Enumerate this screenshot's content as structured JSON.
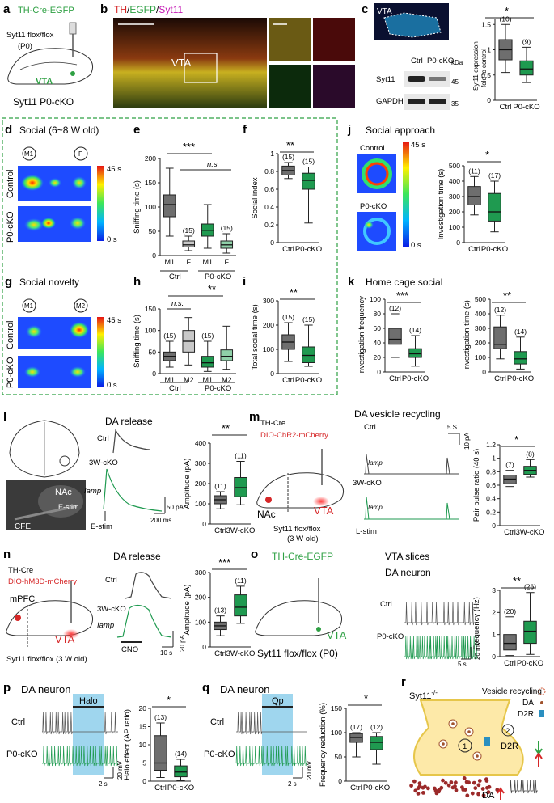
{
  "panels": {
    "a": {
      "letter": "a",
      "title": "TH-Cre-EGFP",
      "line1": "Syt11 flox/flox",
      "line2": "(P0)",
      "region": "VTA",
      "caption": "Syt11 P0-cKO"
    },
    "b": {
      "letter": "b",
      "title_parts": [
        "TH",
        "/",
        "EGFP",
        "/",
        "Syt11"
      ],
      "region": "VTA"
    },
    "c": {
      "letter": "c",
      "region": "VTA",
      "blot_lanes": [
        "Ctrl",
        "P0-cKO"
      ],
      "kda_label": "kDa",
      "bands": [
        "Syt11",
        "GAPDH"
      ],
      "markers": [
        "45",
        "35"
      ],
      "ylabel_1": "Syt11 expression",
      "ylabel_2": "fold to control",
      "sig": "*"
    },
    "d": {
      "letter": "d",
      "title": "Social (6~8 W old)",
      "chamber_left": "M1",
      "chamber_right": "F",
      "rows": [
        "Control",
        "P0-cKO"
      ],
      "scale_max": "45 s",
      "scale_min": "0 s"
    },
    "e": {
      "letter": "e",
      "sig_main": "***",
      "sig_ns": "n.s.",
      "group_ctrl": "Ctrl",
      "group_cko": "P0-cKO"
    },
    "f": {
      "letter": "f",
      "sig": "**"
    },
    "g": {
      "letter": "g",
      "title": "Social novelty",
      "chamber_left": "M1",
      "chamber_right": "M2",
      "rows": [
        "Control",
        "P0-cKO"
      ],
      "scale_max": "45 s",
      "scale_min": "0 s"
    },
    "h": {
      "letter": "h",
      "sig_main": "**",
      "sig_ns": "n.s.",
      "group_ctrl": "Ctrl",
      "group_cko": "P0-cKO"
    },
    "i": {
      "letter": "i",
      "sig": "**"
    },
    "j": {
      "letter": "j",
      "title": "Social approach",
      "row1": "Control",
      "row2": "P0-cKO",
      "scale_max": "45 s",
      "scale_min": "0 s",
      "sig": "*"
    },
    "k": {
      "letter": "k",
      "title": "Home cage social",
      "sig_left": "***",
      "sig_right": "**"
    },
    "l": {
      "letter": "l",
      "title": "DA release",
      "nac": "NAc",
      "estim": "E-stim",
      "cfe": "CFE",
      "ctrl": "Ctrl",
      "cko": "3W-cKO",
      "iamp": "Iamp",
      "estim_bottom": "E-stim",
      "scale_y": "50 pA",
      "scale_x": "200 ms",
      "sig": "**"
    },
    "m": {
      "letter": "m",
      "title": "DA vesicle recycling",
      "th": "TH-Cre",
      "virus": "DIO-ChR2-mCherry",
      "mouse": "Syt11 flox/flox",
      "mouse2": "(3 W old)",
      "nac": "NAc",
      "vta": "VTA",
      "ctrl": "Ctrl",
      "cko": "3W-cKO",
      "iamp": "Iamp",
      "lstim": "L-stim",
      "scale_x": "5 S",
      "scale_y": "10 pA",
      "sig": "*"
    },
    "n": {
      "letter": "n",
      "title": "DA release",
      "th": "TH-Cre",
      "virus": "DIO-hM3D-mCherry",
      "mpfc": "mPFC",
      "vta": "VTA",
      "mouse": "Syt11 flox/flox (3 W old)",
      "ctrl": "Ctrl",
      "cko": "3W-cKO",
      "iamp": "Iamp",
      "cno": "CNO",
      "scale_y": "20 pA",
      "scale_x": "10 s",
      "sig": "***"
    },
    "o": {
      "letter": "o",
      "title": "TH-Cre-EGFP",
      "subtitle": "VTA slices",
      "neuron": "DA neuron",
      "vta": "VTA",
      "mouse": "Syt11 flox/flox (P0)",
      "ctrl": "Ctrl",
      "cko": "P0-cKO",
      "scale_y": "20 mV",
      "scale_x": "5 s",
      "sig": "**"
    },
    "p": {
      "letter": "p",
      "title": "DA neuron",
      "halo": "Halo",
      "ctrl": "Ctrl",
      "cko": "P0-cKO",
      "scale_y": "20 mV",
      "scale_x": "2 s",
      "sig": "*"
    },
    "q": {
      "letter": "q",
      "title": "DA neuron",
      "qp": "Qp",
      "ctrl": "Ctrl",
      "cko": "P0-cKO",
      "scale_y": "20 mV",
      "scale_x": "2 s",
      "sig": "*"
    },
    "r": {
      "letter": "r",
      "title": "Syt11",
      "superscript": "-/-",
      "legend_recycling": "Vesicle recycling",
      "legend_da": "DA",
      "legend_d2r": "D2R",
      "d2r": "D2R",
      "da": "DA",
      "num1": "1",
      "num2": "2"
    }
  },
  "boxplots": [
    {
      "id": "c",
      "ylabel": "Syt11 expression fold to control",
      "ylim": [
        0,
        1.6
      ],
      "yticks": [
        0,
        0.5,
        1.0,
        1.5
      ],
      "groups": [
        {
          "label": "Ctrl",
          "n": "(10)",
          "whisk": [
            0.55,
            1.5
          ],
          "box": [
            0.8,
            1.2
          ],
          "median": 1.0,
          "color": "#6e6e6e"
        },
        {
          "label": "P0-cKO",
          "n": "(9)",
          "whisk": [
            0.35,
            1.05
          ],
          "box": [
            0.5,
            0.78
          ],
          "median": 0.62,
          "color": "#1f9a50"
        }
      ]
    },
    {
      "id": "e",
      "ylabel": "Sniffing time (s)",
      "ylim": [
        0,
        200
      ],
      "yticks": [
        0,
        50,
        100,
        150,
        200
      ],
      "groups": [
        {
          "label": "M1",
          "n": "",
          "whisk": [
            40,
            180
          ],
          "box": [
            80,
            125
          ],
          "median": 105,
          "color": "#6e6e6e"
        },
        {
          "label": "F",
          "n": "(15)",
          "whisk": [
            10,
            40
          ],
          "box": [
            18,
            30
          ],
          "median": 22,
          "color": "#c8c8c8"
        },
        {
          "label": "M1",
          "n": "",
          "whisk": [
            15,
            105
          ],
          "box": [
            40,
            65
          ],
          "median": 52,
          "color": "#1f9a50"
        },
        {
          "label": "F",
          "n": "(15)",
          "whisk": [
            5,
            45
          ],
          "box": [
            15,
            30
          ],
          "median": 22,
          "color": "#8fd0a8"
        }
      ]
    },
    {
      "id": "f",
      "ylabel": "Social index",
      "ylim": [
        0,
        1.0
      ],
      "yticks": [
        0,
        0.2,
        0.4,
        0.6,
        0.8,
        1.0
      ],
      "groups": [
        {
          "label": "Ctrl",
          "n": "(15)",
          "whisk": [
            0.72,
            0.9
          ],
          "box": [
            0.76,
            0.86
          ],
          "median": 0.81,
          "color": "#6e6e6e"
        },
        {
          "label": "P0-cKO",
          "n": "(15)",
          "whisk": [
            0.22,
            0.85
          ],
          "box": [
            0.6,
            0.78
          ],
          "median": 0.7,
          "color": "#1f9a50"
        }
      ]
    },
    {
      "id": "j",
      "ylabel": "Investigation time (s)",
      "ylim": [
        0,
        500
      ],
      "yticks": [
        0,
        100,
        200,
        300,
        400,
        500
      ],
      "groups": [
        {
          "label": "Ctrl",
          "n": "(11)",
          "whisk": [
            180,
            430
          ],
          "box": [
            245,
            365
          ],
          "median": 300,
          "color": "#6e6e6e"
        },
        {
          "label": "P0-cKO",
          "n": "(17)",
          "whisk": [
            70,
            400
          ],
          "box": [
            140,
            320
          ],
          "median": 200,
          "color": "#1f9a50"
        }
      ]
    },
    {
      "id": "h",
      "ylabel": "Sniffing time (s)",
      "ylim": [
        0,
        150
      ],
      "yticks": [
        0,
        50,
        100,
        150
      ],
      "groups": [
        {
          "label": "M1",
          "n": "(15)",
          "whisk": [
            15,
            75
          ],
          "box": [
            30,
            50
          ],
          "median": 40,
          "color": "#6e6e6e"
        },
        {
          "label": "M2",
          "n": "",
          "whisk": [
            20,
            130
          ],
          "box": [
            50,
            100
          ],
          "median": 75,
          "color": "#c8c8c8"
        },
        {
          "label": "M1",
          "n": "(15)",
          "whisk": [
            5,
            75
          ],
          "box": [
            15,
            40
          ],
          "median": 25,
          "color": "#1f9a50"
        },
        {
          "label": "M2",
          "n": "",
          "whisk": [
            10,
            110
          ],
          "box": [
            30,
            55
          ],
          "median": 40,
          "color": "#8fd0a8"
        }
      ]
    },
    {
      "id": "i",
      "ylabel": "Total social time (s)",
      "ylim": [
        0,
        300
      ],
      "yticks": [
        0,
        100,
        200,
        300
      ],
      "groups": [
        {
          "label": "Ctrl",
          "n": "(15)",
          "whisk": [
            50,
            210
          ],
          "box": [
            100,
            160
          ],
          "median": 130,
          "color": "#6e6e6e"
        },
        {
          "label": "P0-cKO",
          "n": "(15)",
          "whisk": [
            30,
            200
          ],
          "box": [
            45,
            110
          ],
          "median": 75,
          "color": "#1f9a50"
        }
      ]
    },
    {
      "id": "k1",
      "ylabel": "Investigation frequency",
      "ylim": [
        0,
        100
      ],
      "yticks": [
        0,
        20,
        40,
        60,
        80,
        100
      ],
      "groups": [
        {
          "label": "Ctrl",
          "n": "(12)",
          "whisk": [
            20,
            80
          ],
          "box": [
            38,
            60
          ],
          "median": 45,
          "color": "#6e6e6e"
        },
        {
          "label": "P0-cKO",
          "n": "(14)",
          "whisk": [
            8,
            50
          ],
          "box": [
            20,
            32
          ],
          "median": 25,
          "color": "#1f9a50"
        }
      ]
    },
    {
      "id": "k2",
      "ylabel": "Investigation time (s)",
      "ylim": [
        0,
        500
      ],
      "yticks": [
        0,
        100,
        200,
        300,
        400,
        500
      ],
      "groups": [
        {
          "label": "Ctrl",
          "n": "(12)",
          "whisk": [
            90,
            390
          ],
          "box": [
            160,
            310
          ],
          "median": 190,
          "color": "#6e6e6e"
        },
        {
          "label": "P0-cKO",
          "n": "(14)",
          "whisk": [
            20,
            240
          ],
          "box": [
            55,
            140
          ],
          "median": 90,
          "color": "#1f9a50"
        }
      ]
    },
    {
      "id": "l",
      "ylabel": "Amplitude (pA)",
      "ylim": [
        0,
        400
      ],
      "yticks": [
        0,
        100,
        200,
        300,
        400
      ],
      "groups": [
        {
          "label": "Ctrl",
          "n": "(11)",
          "whisk": [
            75,
            160
          ],
          "box": [
            100,
            140
          ],
          "median": 120,
          "color": "#6e6e6e"
        },
        {
          "label": "3W-cKO",
          "n": "(11)",
          "whisk": [
            95,
            310
          ],
          "box": [
            135,
            230
          ],
          "median": 180,
          "color": "#1f9a50"
        }
      ]
    },
    {
      "id": "m",
      "ylabel": "Pair pulse ratio (40 s)",
      "ylim": [
        0,
        1.2
      ],
      "yticks": [
        0,
        0.2,
        0.4,
        0.6,
        0.8,
        1.0,
        1.2
      ],
      "groups": [
        {
          "label": "Ctrl",
          "n": "(7)",
          "whisk": [
            0.58,
            0.82
          ],
          "box": [
            0.62,
            0.75
          ],
          "median": 0.69,
          "color": "#6e6e6e"
        },
        {
          "label": "3W-cKO",
          "n": "(8)",
          "whisk": [
            0.72,
            0.98
          ],
          "box": [
            0.76,
            0.88
          ],
          "median": 0.82,
          "color": "#1f9a50"
        }
      ]
    },
    {
      "id": "n",
      "ylabel": "Amplitude (pA)",
      "ylim": [
        0,
        300
      ],
      "yticks": [
        0,
        100,
        200,
        300
      ],
      "groups": [
        {
          "label": "Ctrl",
          "n": "(13)",
          "whisk": [
            45,
            125
          ],
          "box": [
            70,
            100
          ],
          "median": 85,
          "color": "#6e6e6e"
        },
        {
          "label": "3W-cKO",
          "n": "(11)",
          "whisk": [
            95,
            245
          ],
          "box": [
            125,
            210
          ],
          "median": 160,
          "color": "#1f9a50"
        }
      ]
    },
    {
      "id": "o",
      "ylabel": "Frequency (Hz)",
      "ylim": [
        0,
        3
      ],
      "yticks": [
        0,
        1,
        2,
        3
      ],
      "groups": [
        {
          "label": "Ctrl",
          "n": "(20)",
          "whisk": [
            0.05,
            1.8
          ],
          "box": [
            0.3,
            1.0
          ],
          "median": 0.6,
          "color": "#6e6e6e"
        },
        {
          "label": "P0-cKO",
          "n": "(26)",
          "whisk": [
            0.1,
            2.9
          ],
          "box": [
            0.6,
            1.6
          ],
          "median": 1.15,
          "color": "#1f9a50"
        }
      ]
    },
    {
      "id": "p",
      "ylabel": "Halo effect (AP ratio)",
      "ylim": [
        0,
        20
      ],
      "yticks": [
        0,
        5,
        10,
        15,
        20
      ],
      "groups": [
        {
          "label": "Ctrl",
          "n": "(13)",
          "whisk": [
            1,
            16
          ],
          "box": [
            3,
            12.5
          ],
          "median": 5,
          "color": "#6e6e6e"
        },
        {
          "label": "P0-cKO",
          "n": "(14)",
          "whisk": [
            0.2,
            6
          ],
          "box": [
            1.2,
            4.2
          ],
          "median": 2.5,
          "color": "#1f9a50"
        }
      ]
    },
    {
      "id": "q",
      "ylabel": "Frequency reduction (%)",
      "ylim": [
        0,
        150
      ],
      "yticks": [
        0,
        50,
        100,
        150
      ],
      "groups": [
        {
          "label": "Ctrl",
          "n": "(17)",
          "whisk": [
            50,
            100
          ],
          "box": [
            80,
            98
          ],
          "median": 90,
          "color": "#6e6e6e"
        },
        {
          "label": "P0-cKO",
          "n": "(12)",
          "whisk": [
            35,
            100
          ],
          "box": [
            65,
            92
          ],
          "median": 80,
          "color": "#1f9a50"
        }
      ]
    }
  ],
  "chart_data": [
    {
      "type": "box",
      "panel": "c",
      "categories": [
        "Ctrl",
        "P0-cKO"
      ],
      "ylabel": "Syt11 expression fold to control",
      "ylim": [
        0,
        1.6
      ]
    },
    {
      "type": "box",
      "panel": "e",
      "categories": [
        "Ctrl M1",
        "Ctrl F",
        "P0-cKO M1",
        "P0-cKO F"
      ],
      "ylabel": "Sniffing time (s)",
      "ylim": [
        0,
        200
      ]
    },
    {
      "type": "box",
      "panel": "f",
      "categories": [
        "Ctrl",
        "P0-cKO"
      ],
      "ylabel": "Social index",
      "ylim": [
        0,
        1.0
      ]
    },
    {
      "type": "box",
      "panel": "h",
      "categories": [
        "Ctrl M1",
        "Ctrl M2",
        "P0-cKO M1",
        "P0-cKO M2"
      ],
      "ylabel": "Sniffing time (s)",
      "ylim": [
        0,
        150
      ]
    },
    {
      "type": "box",
      "panel": "i",
      "categories": [
        "Ctrl",
        "P0-cKO"
      ],
      "ylabel": "Total social time (s)",
      "ylim": [
        0,
        300
      ]
    },
    {
      "type": "box",
      "panel": "j",
      "categories": [
        "Ctrl",
        "P0-cKO"
      ],
      "ylabel": "Investigation time (s)",
      "ylim": [
        0,
        500
      ]
    },
    {
      "type": "box",
      "panel": "k",
      "categories": [
        "Ctrl",
        "P0-cKO"
      ],
      "ylabel": "Investigation frequency / Investigation time (s)"
    },
    {
      "type": "box",
      "panel": "l",
      "categories": [
        "Ctrl",
        "3W-cKO"
      ],
      "ylabel": "Amplitude (pA)",
      "ylim": [
        0,
        400
      ]
    },
    {
      "type": "box",
      "panel": "m",
      "categories": [
        "Ctrl",
        "3W-cKO"
      ],
      "ylabel": "Pair pulse ratio (40 s)",
      "ylim": [
        0,
        1.2
      ]
    },
    {
      "type": "box",
      "panel": "n",
      "categories": [
        "Ctrl",
        "3W-cKO"
      ],
      "ylabel": "Amplitude (pA)",
      "ylim": [
        0,
        300
      ]
    },
    {
      "type": "box",
      "panel": "o",
      "categories": [
        "Ctrl",
        "P0-cKO"
      ],
      "ylabel": "Frequency (Hz)",
      "ylim": [
        0,
        3
      ]
    },
    {
      "type": "box",
      "panel": "p",
      "categories": [
        "Ctrl",
        "P0-cKO"
      ],
      "ylabel": "Halo effect (AP ratio)",
      "ylim": [
        0,
        20
      ]
    },
    {
      "type": "box",
      "panel": "q",
      "categories": [
        "Ctrl",
        "P0-cKO"
      ],
      "ylabel": "Frequency reduction (%)",
      "ylim": [
        0,
        150
      ]
    }
  ]
}
